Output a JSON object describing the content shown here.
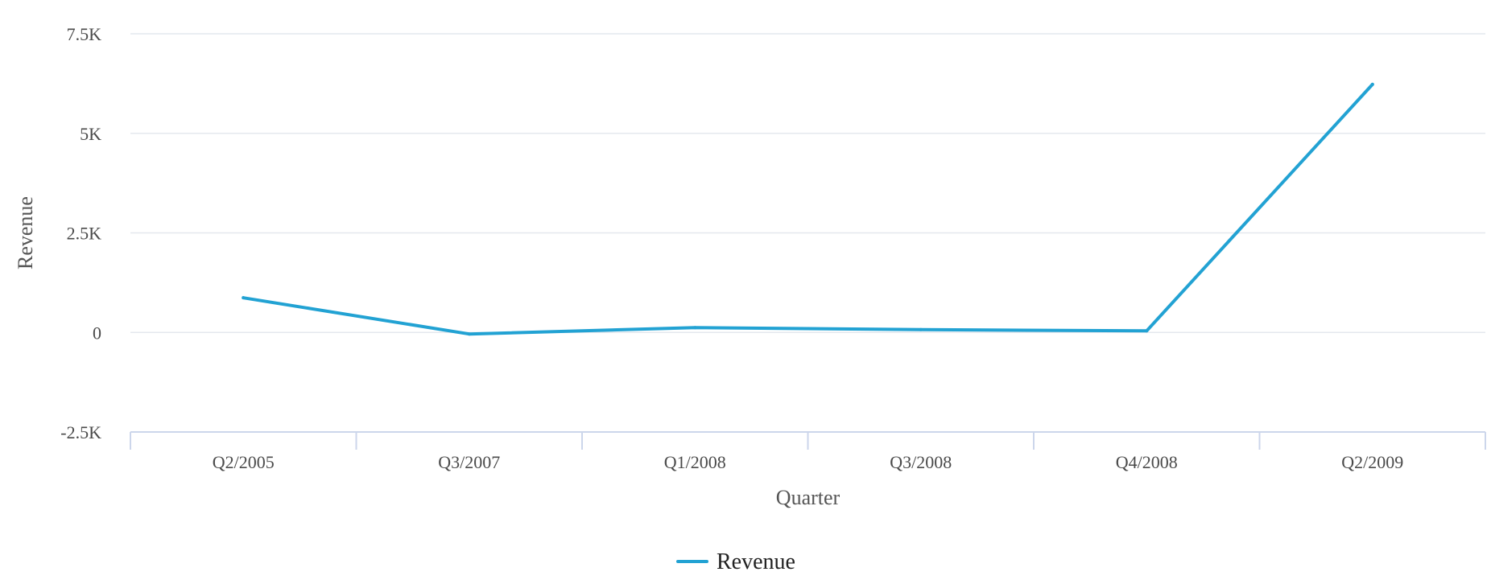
{
  "chart_data": {
    "type": "line",
    "title": "",
    "xlabel": "Quarter",
    "ylabel": "Revenue",
    "categories": [
      "Q2/2005",
      "Q3/2007",
      "Q1/2008",
      "Q3/2008",
      "Q4/2008",
      "Q2/2009"
    ],
    "series": [
      {
        "name": "Revenue",
        "values": [
          870,
          -40,
          120,
          70,
          40,
          6230
        ],
        "color": "#22a2d3"
      }
    ],
    "ylim": [
      -2500,
      7500
    ],
    "yticks": [
      {
        "value": -2500,
        "label": "-2.5K"
      },
      {
        "value": 0,
        "label": "0"
      },
      {
        "value": 2500,
        "label": "2.5K"
      },
      {
        "value": 5000,
        "label": "5K"
      },
      {
        "value": 7500,
        "label": "7.5K"
      }
    ],
    "grid": true,
    "legend": {
      "position": "bottom-center",
      "entries": [
        "Revenue"
      ]
    }
  }
}
